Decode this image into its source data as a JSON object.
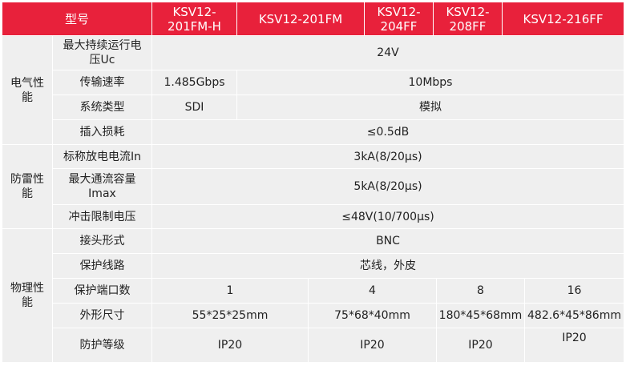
{
  "header": {
    "model_label": "型号",
    "models": [
      "KSV12-201FM-H",
      "KSV12-201FM",
      "KSV12-204FF",
      "KSV12-208FF",
      "KSV12-216FF"
    ]
  },
  "electrical": {
    "category": "电气性能",
    "rows": [
      {
        "label": "最大持续运行电压Uc",
        "value": "24V"
      },
      {
        "label": "传输速率",
        "values": [
          "1.485Gbps",
          "10Mbps"
        ]
      },
      {
        "label": "系统类型",
        "values": [
          "SDI",
          "模拟"
        ]
      },
      {
        "label": "插入损耗",
        "value": "≤0.5dB"
      }
    ]
  },
  "lightning": {
    "category": "防雷性能",
    "rows": [
      {
        "label": "标称放电电流In",
        "value": "3kA(8/20μs)"
      },
      {
        "label": "最大通流容量 Imax",
        "value": "5kA(8/20μs)"
      },
      {
        "label": "冲击限制电压",
        "value": "≤48V(10/700μs)"
      }
    ]
  },
  "physical": {
    "category": "物理性能",
    "rows": [
      {
        "label": "接头形式",
        "value": "BNC"
      },
      {
        "label": "保护线路",
        "value": "芯线，外皮"
      },
      {
        "label": "保护端口数",
        "values": [
          "1",
          "4",
          "8",
          "16"
        ]
      },
      {
        "label": "外形尺寸",
        "values": [
          "55*25*25mm",
          "75*68*40mm",
          "180*45*68mm",
          "482.6*45*86mm"
        ]
      },
      {
        "label": "防护等级",
        "values": [
          "IP20",
          "IP20",
          "IP20",
          "IP20"
        ]
      }
    ]
  },
  "colors": {
    "header_bg": "#e8213b",
    "cell_bg": "#efefef"
  }
}
